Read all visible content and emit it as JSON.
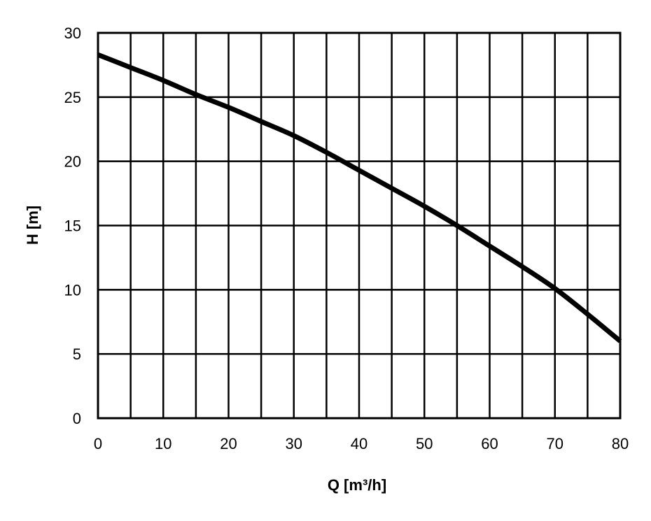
{
  "chart_data": {
    "type": "line",
    "xlabel": "Q [m³/h]",
    "ylabel": "H [m]",
    "xlim": [
      0,
      80
    ],
    "ylim": [
      0,
      30
    ],
    "x_ticks": [
      0,
      10,
      20,
      30,
      40,
      50,
      60,
      70,
      80
    ],
    "y_ticks": [
      0,
      5,
      10,
      15,
      20,
      25,
      30
    ],
    "x_grid_step": 5,
    "y_grid_step": 5,
    "grid": true,
    "series": [
      {
        "x": [
          0,
          5,
          10,
          15,
          20,
          25,
          30,
          35,
          40,
          45,
          50,
          55,
          60,
          65,
          70,
          75,
          80
        ],
        "y": [
          28.3,
          27.3,
          26.3,
          25.2,
          24.2,
          23.1,
          22.0,
          20.7,
          19.3,
          17.9,
          16.5,
          15.0,
          13.4,
          11.8,
          10.1,
          8.1,
          6.0
        ]
      }
    ],
    "colors": {
      "line": "#000000",
      "grid": "#000000",
      "background": "#ffffff"
    }
  }
}
